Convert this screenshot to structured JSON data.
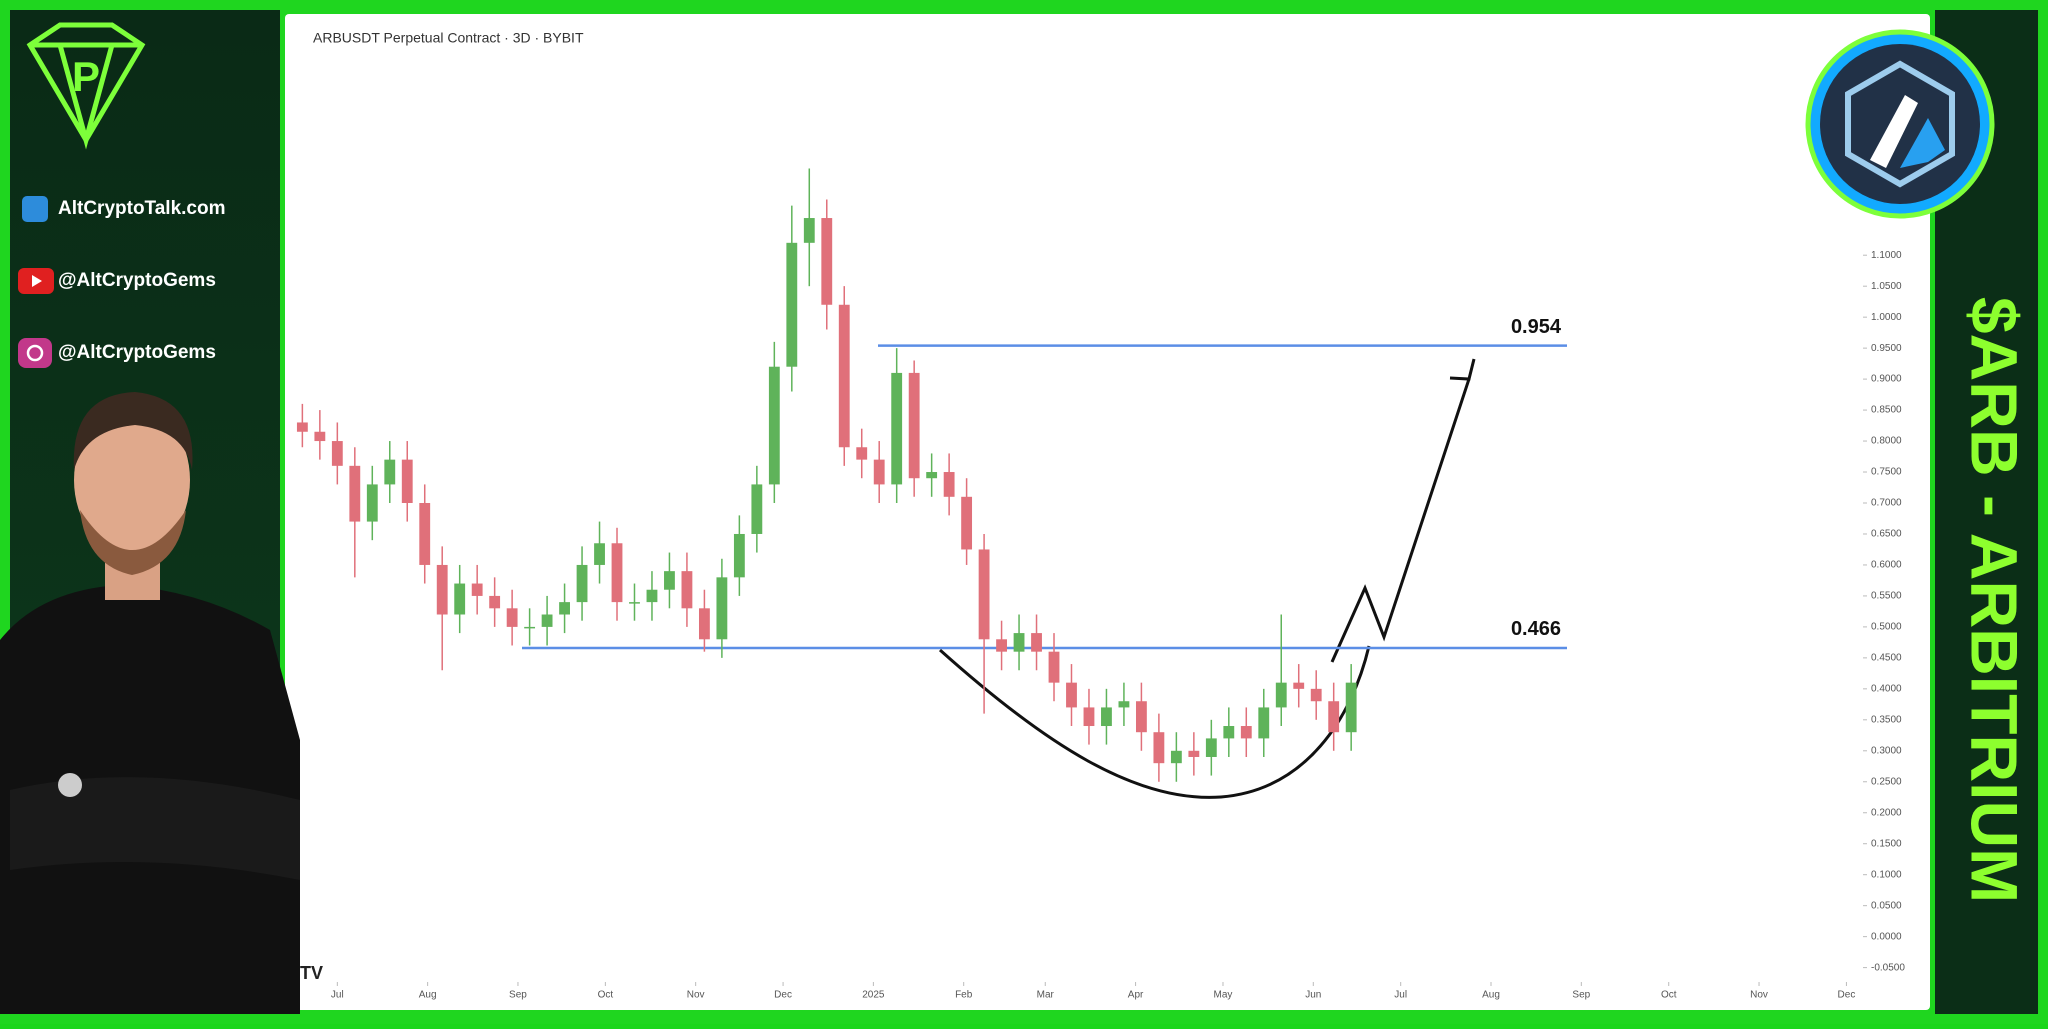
{
  "sidebar": {
    "site": "AltCryptoTalk.com",
    "youtube": "@AltCryptoGems",
    "instagram": "@AltCryptoGems"
  },
  "banner": "$ARB - ARBITRIUM",
  "chart_data": {
    "type": "candlestick",
    "title": "ARBUSDT Perpetual Contract · 3D · BYBIT",
    "up_color": "#5fb35a",
    "down_color": "#e0707a",
    "level_color": "#5b8ee6",
    "x": [
      -12,
      -6,
      0,
      6,
      12,
      18,
      24,
      30,
      36,
      42,
      48,
      54,
      60,
      66,
      72,
      78,
      84,
      90,
      96,
      102,
      108,
      114,
      120,
      126,
      132,
      138,
      144,
      150,
      156,
      162,
      168,
      174,
      180,
      186,
      192,
      198,
      204,
      210,
      216,
      222,
      228,
      234,
      240,
      246,
      252,
      258,
      264,
      270,
      276,
      282,
      288,
      294,
      300,
      306,
      312,
      318,
      324,
      330,
      336,
      342,
      348
    ],
    "open": [
      0.83,
      0.815,
      0.8,
      0.76,
      0.67,
      0.73,
      0.77,
      0.7,
      0.6,
      0.52,
      0.57,
      0.55,
      0.53,
      0.5,
      0.5,
      0.52,
      0.54,
      0.6,
      0.635,
      0.54,
      0.54,
      0.56,
      0.59,
      0.53,
      0.48,
      0.58,
      0.65,
      0.73,
      0.92,
      1.12,
      1.16,
      1.02,
      0.79,
      0.77,
      0.73,
      0.91,
      0.74,
      0.75,
      0.71,
      0.625,
      0.48,
      0.46,
      0.49,
      0.46,
      0.41,
      0.37,
      0.34,
      0.37,
      0.38,
      0.33,
      0.28,
      0.3,
      0.29,
      0.32,
      0.34,
      0.32,
      0.37,
      0.41,
      0.4,
      0.38,
      0.33
    ],
    "high": [
      0.86,
      0.85,
      0.83,
      0.79,
      0.76,
      0.8,
      0.8,
      0.73,
      0.63,
      0.6,
      0.6,
      0.58,
      0.56,
      0.53,
      0.55,
      0.57,
      0.63,
      0.67,
      0.66,
      0.57,
      0.59,
      0.62,
      0.62,
      0.56,
      0.61,
      0.68,
      0.76,
      0.96,
      1.18,
      1.24,
      1.19,
      1.05,
      0.82,
      0.8,
      0.95,
      0.93,
      0.78,
      0.78,
      0.74,
      0.65,
      0.51,
      0.52,
      0.52,
      0.49,
      0.44,
      0.4,
      0.4,
      0.41,
      0.41,
      0.36,
      0.33,
      0.33,
      0.35,
      0.37,
      0.37,
      0.4,
      0.52,
      0.44,
      0.43,
      0.41,
      0.44
    ],
    "low": [
      0.79,
      0.77,
      0.73,
      0.58,
      0.64,
      0.7,
      0.67,
      0.57,
      0.43,
      0.49,
      0.52,
      0.5,
      0.47,
      0.47,
      0.47,
      0.49,
      0.51,
      0.57,
      0.51,
      0.51,
      0.51,
      0.53,
      0.5,
      0.46,
      0.45,
      0.55,
      0.62,
      0.7,
      0.88,
      1.05,
      0.98,
      0.76,
      0.74,
      0.7,
      0.7,
      0.71,
      0.71,
      0.68,
      0.6,
      0.36,
      0.43,
      0.43,
      0.43,
      0.38,
      0.34,
      0.31,
      0.31,
      0.34,
      0.3,
      0.25,
      0.25,
      0.26,
      0.26,
      0.29,
      0.29,
      0.29,
      0.34,
      0.37,
      0.35,
      0.3,
      0.3
    ],
    "close": [
      0.815,
      0.8,
      0.76,
      0.67,
      0.73,
      0.77,
      0.7,
      0.6,
      0.52,
      0.57,
      0.55,
      0.53,
      0.5,
      0.5,
      0.52,
      0.54,
      0.6,
      0.635,
      0.54,
      0.54,
      0.56,
      0.59,
      0.53,
      0.48,
      0.58,
      0.65,
      0.73,
      0.92,
      1.12,
      1.16,
      1.02,
      0.79,
      0.77,
      0.73,
      0.91,
      0.74,
      0.75,
      0.71,
      0.625,
      0.48,
      0.46,
      0.49,
      0.46,
      0.41,
      0.37,
      0.34,
      0.37,
      0.38,
      0.33,
      0.28,
      0.3,
      0.29,
      0.32,
      0.34,
      0.32,
      0.37,
      0.41,
      0.4,
      0.38,
      0.33,
      0.41
    ],
    "levels": [
      0.954,
      0.466
    ],
    "xlim": [
      -13.5,
      523
    ],
    "ylim": [
      -0.07,
      1.47
    ],
    "xticks": [
      {
        "value": 0,
        "label": "Jul"
      },
      {
        "value": 31,
        "label": "Aug"
      },
      {
        "value": 62,
        "label": "Sep"
      },
      {
        "value": 92,
        "label": "Oct"
      },
      {
        "value": 123,
        "label": "Nov"
      },
      {
        "value": 153,
        "label": "Dec"
      },
      {
        "value": 184,
        "label": "2025"
      },
      {
        "value": 215,
        "label": "Feb"
      },
      {
        "value": 243,
        "label": "Mar"
      },
      {
        "value": 274,
        "label": "Apr"
      },
      {
        "value": 304,
        "label": "May"
      },
      {
        "value": 335,
        "label": "Jun"
      },
      {
        "value": 365,
        "label": "Jul"
      },
      {
        "value": 396,
        "label": "Aug"
      },
      {
        "value": 427,
        "label": "Sep"
      },
      {
        "value": 457,
        "label": "Oct"
      },
      {
        "value": 488,
        "label": "Nov"
      },
      {
        "value": 518,
        "label": "Dec"
      }
    ],
    "yticks": [
      {
        "value": 1.1,
        "label": "1.1000"
      },
      {
        "value": 1.05,
        "label": "1.0500"
      },
      {
        "value": 1,
        "label": "1.0000"
      },
      {
        "value": 0.95,
        "label": "0.9500"
      },
      {
        "value": 0.9,
        "label": "0.9000"
      },
      {
        "value": 0.85,
        "label": "0.8500"
      },
      {
        "value": 0.8,
        "label": "0.8000"
      },
      {
        "value": 0.75,
        "label": "0.7500"
      },
      {
        "value": 0.7,
        "label": "0.7000"
      },
      {
        "value": 0.65,
        "label": "0.6500"
      },
      {
        "value": 0.6,
        "label": "0.6000"
      },
      {
        "value": 0.55,
        "label": "0.5500"
      },
      {
        "value": 0.5,
        "label": "0.5000"
      },
      {
        "value": 0.45,
        "label": "0.4500"
      },
      {
        "value": 0.4,
        "label": "0.4000"
      },
      {
        "value": 0.35,
        "label": "0.3500"
      },
      {
        "value": 0.3,
        "label": "0.3000"
      },
      {
        "value": 0.25,
        "label": "0.2500"
      },
      {
        "value": 0.2,
        "label": "0.2000"
      },
      {
        "value": 0.15,
        "label": "0.1500"
      },
      {
        "value": 0.1,
        "label": "0.1000"
      },
      {
        "value": 0.05,
        "label": "0.0500"
      },
      {
        "value": 0,
        "label": "0.0000"
      },
      {
        "value": -0.05,
        "label": "-0.0500"
      }
    ]
  }
}
